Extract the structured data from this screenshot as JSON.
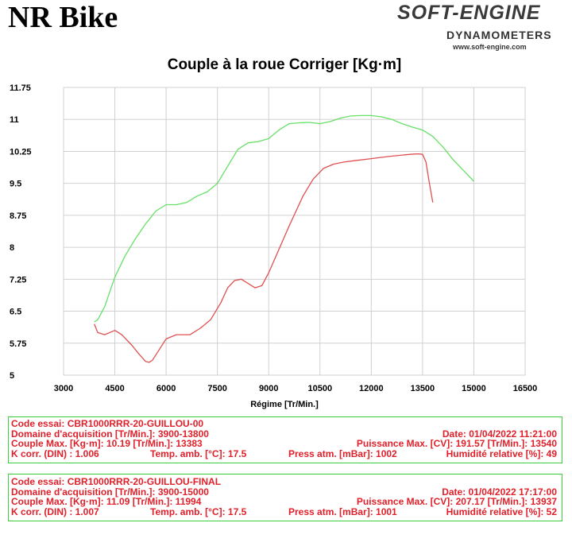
{
  "header": {
    "title": "NR Bike",
    "logo_main": "SOFT-ENGINE",
    "logo_sub": "DYNAMOMETERS",
    "logo_url": "www.soft-engine.com"
  },
  "colors": {
    "run1": "#e05050",
    "run2": "#66e066",
    "box_border": "#3ccf3c",
    "info_text": "#e0202a",
    "grid": "#d0d0d0"
  },
  "chart_data": {
    "type": "line",
    "title": "Couple à la roue Corriger [Kg·m]",
    "xlabel": "Régime [Tr/Min.]",
    "ylabel": "",
    "xlim": [
      3000,
      16500
    ],
    "ylim": [
      5,
      11.75
    ],
    "xticks": [
      "3000",
      "4500",
      "6000",
      "7500",
      "9000",
      "10500",
      "12000",
      "13500",
      "15000",
      "16500"
    ],
    "yticks": [
      "5",
      "5.75",
      "6.5",
      "7.25",
      "8",
      "8.75",
      "9.5",
      "10.25",
      "11",
      "11.75"
    ],
    "grid": true,
    "series": [
      {
        "color": "#e05050",
        "x": [
          3900,
          4000,
          4200,
          4500,
          4700,
          5000,
          5200,
          5400,
          5500,
          5600,
          5800,
          6000,
          6300,
          6700,
          7000,
          7300,
          7600,
          7800,
          8000,
          8200,
          8400,
          8600,
          8800,
          9000,
          9300,
          9600,
          10000,
          10300,
          10600,
          10900,
          11200,
          11500,
          12000,
          12500,
          13000,
          13300,
          13383,
          13500,
          13600,
          13700,
          13800
        ],
        "y": [
          6.2,
          6.0,
          5.95,
          6.05,
          5.95,
          5.7,
          5.5,
          5.32,
          5.3,
          5.35,
          5.6,
          5.85,
          5.95,
          5.95,
          6.1,
          6.3,
          6.7,
          7.05,
          7.22,
          7.25,
          7.15,
          7.05,
          7.1,
          7.4,
          7.95,
          8.5,
          9.2,
          9.6,
          9.85,
          9.95,
          10.0,
          10.03,
          10.08,
          10.13,
          10.17,
          10.19,
          10.19,
          10.18,
          10.0,
          9.5,
          9.05
        ]
      },
      {
        "color": "#66e066",
        "x": [
          3900,
          4000,
          4200,
          4500,
          4800,
          5100,
          5400,
          5700,
          6000,
          6300,
          6600,
          6900,
          7200,
          7500,
          7800,
          8100,
          8400,
          8700,
          9000,
          9300,
          9600,
          9900,
          10200,
          10500,
          10800,
          11100,
          11400,
          11700,
          11994,
          12300,
          12600,
          12900,
          13200,
          13500,
          13800,
          14100,
          14400,
          14700,
          15000
        ],
        "y": [
          6.25,
          6.3,
          6.6,
          7.3,
          7.8,
          8.2,
          8.55,
          8.85,
          9.0,
          9.0,
          9.05,
          9.2,
          9.3,
          9.5,
          9.9,
          10.3,
          10.45,
          10.48,
          10.55,
          10.75,
          10.9,
          10.92,
          10.93,
          10.9,
          10.95,
          11.03,
          11.08,
          11.09,
          11.09,
          11.06,
          11.0,
          10.9,
          10.82,
          10.75,
          10.6,
          10.35,
          10.05,
          9.8,
          9.55
        ]
      }
    ]
  },
  "runs": [
    {
      "code": "Code essai: CBR1000RRR-20-GUILLOU-00",
      "domain": "Domaine d'acquisition [Tr/Min.]: 3900-13800",
      "date": "Date: 01/04/2022   11:21:00",
      "couple": "Couple Max. [Kg·m]: 10.19   [Tr/Min.]: 13383",
      "puissance": "Puissance Max. [CV]: 191.57   [Tr/Min.]: 13540",
      "kcorr": "K corr. (DIN) : 1.006",
      "temp": "Temp. amb. [°C]: 17.5",
      "press": "Press atm. [mBar]: 1002",
      "humid": "Humidité relative [%]: 49"
    },
    {
      "code": "Code essai: CBR1000RRR-20-GUILLOU-FINAL",
      "domain": "Domaine d'acquisition [Tr/Min.]: 3900-15000",
      "date": "Date: 01/04/2022   17:17:00",
      "couple": "Couple Max. [Kg·m]: 11.09   [Tr/Min.]: 11994",
      "puissance": "Puissance Max. [CV]: 207.17   [Tr/Min.]: 13937",
      "kcorr": "K corr. (DIN) : 1.007",
      "temp": "Temp. amb. [°C]: 17.5",
      "press": "Press atm. [mBar]: 1001",
      "humid": "Humidité relative [%]: 52"
    }
  ]
}
